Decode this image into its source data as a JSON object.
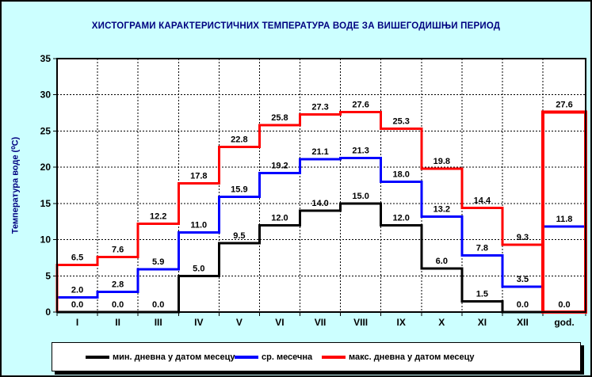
{
  "colors": {
    "background": "#CCFFFF",
    "plot_background": "#FFFFFF",
    "title_text": "#000080",
    "axis_text": "#000000",
    "grid": "#000000"
  },
  "chart_data": {
    "type": "line",
    "subtype": "step-histogram",
    "title": "ХИСТОГРАМИ КАРАКТЕРИСТИЧНИХ ТЕМПЕРАТУРА ВОДЕ ЗА ВИШЕГОДИШЊИ ПЕРИОД",
    "ylabel": "Температура воде (⁰C)",
    "xlabel": "",
    "ylim": [
      0,
      35
    ],
    "y_ticks": [
      0,
      5,
      10,
      15,
      20,
      25,
      30,
      35
    ],
    "grid": "dashed",
    "legend_position": "bottom",
    "categories": [
      "I",
      "II",
      "III",
      "IV",
      "V",
      "VI",
      "VII",
      "VIII",
      "IX",
      "X",
      "XI",
      "XII"
    ],
    "annual_category": "god.",
    "series": [
      {
        "name": "мин. дневна у датом месецу",
        "color": "#000000",
        "values": [
          0.0,
          0.0,
          0.0,
          5.0,
          9.5,
          12.0,
          14.0,
          15.0,
          12.0,
          6.0,
          1.5,
          0.0
        ],
        "annual_value": 0.0,
        "annual_style": "line"
      },
      {
        "name": "ср. месечна",
        "color": "#0000FF",
        "values": [
          2.0,
          2.8,
          5.9,
          11.0,
          15.9,
          19.2,
          21.1,
          21.3,
          18.0,
          13.2,
          7.8,
          3.5
        ],
        "annual_value": 11.8,
        "annual_style": "line"
      },
      {
        "name": "макс. дневна у датом месецу",
        "color": "#FF0000",
        "values": [
          6.5,
          7.6,
          12.2,
          17.8,
          22.8,
          25.8,
          27.3,
          27.6,
          25.3,
          19.8,
          14.4,
          9.3
        ],
        "annual_value": 27.6,
        "annual_style": "box"
      }
    ]
  }
}
